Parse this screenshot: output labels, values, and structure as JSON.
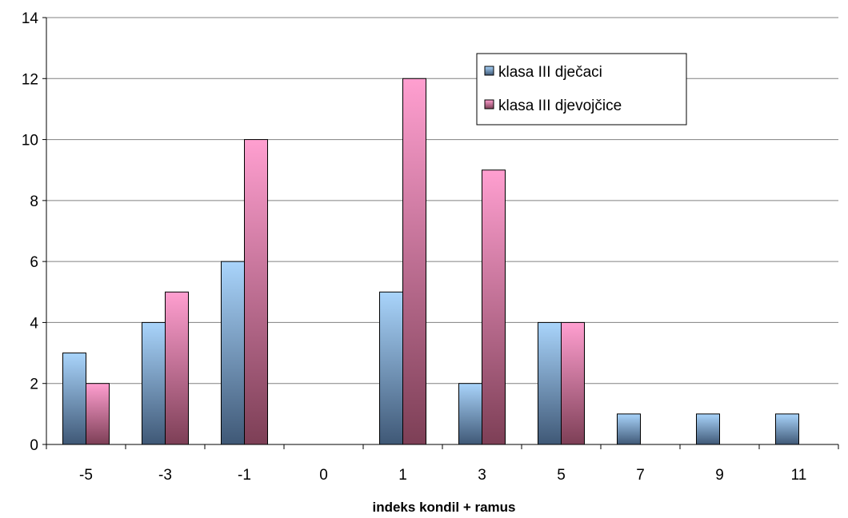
{
  "chart_data": {
    "type": "bar",
    "xlabel": "indeks kondil + ramus",
    "ylabel": "",
    "ylim": [
      0,
      14
    ],
    "yticks": [
      0,
      2,
      4,
      6,
      8,
      10,
      12,
      14
    ],
    "grid": "horizontal",
    "legend_position": "top-right",
    "categories": [
      "-5",
      "-3",
      "-1",
      "0",
      "1",
      "3",
      "5",
      "7",
      "9",
      "11"
    ],
    "series": [
      {
        "name": "klasa III dječaci",
        "color": "#99ccff",
        "values": [
          3,
          4,
          6,
          0,
          5,
          2,
          4,
          1,
          1,
          1
        ]
      },
      {
        "name": "klasa III djevojčice",
        "color": "#ff99cc",
        "values": [
          2,
          5,
          10,
          0,
          12,
          9,
          4,
          0,
          0,
          0
        ]
      }
    ]
  }
}
